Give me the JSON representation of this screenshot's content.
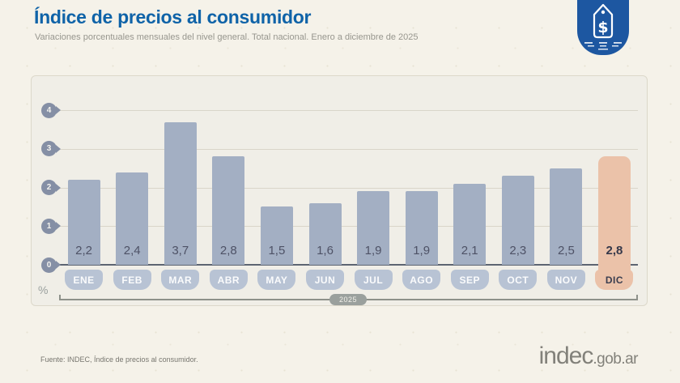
{
  "header": {
    "title": "Índice de precios al consumidor",
    "subtitle": "Variaciones porcentuales mensuales del nivel general. Total nacional. Enero a diciembre de 2025"
  },
  "badge": {
    "icon": "price-tag-dollar-icon",
    "color": "#1d57a1"
  },
  "chart_data": {
    "type": "bar",
    "title": "Índice de precios al consumidor",
    "subtitle": "Variaciones porcentuales mensuales del nivel general. Total nacional. Enero a diciembre de 2025",
    "categories": [
      "ENE",
      "FEB",
      "MAR",
      "ABR",
      "MAY",
      "JUN",
      "JUL",
      "AGO",
      "SEP",
      "OCT",
      "NOV",
      "DIC"
    ],
    "values": [
      2.2,
      2.4,
      3.7,
      2.8,
      1.5,
      1.6,
      1.9,
      1.9,
      2.1,
      2.3,
      2.5,
      2.8
    ],
    "value_labels": [
      "2,2",
      "2,4",
      "3,7",
      "2,8",
      "1,5",
      "1,6",
      "1,9",
      "1,9",
      "2,1",
      "2,3",
      "2,5",
      "2,8"
    ],
    "highlight_index": 11,
    "y_ticks": [
      0,
      1,
      2,
      3,
      4
    ],
    "ylim": [
      0,
      4
    ],
    "unit_label": "%",
    "x_axis_label": "2025",
    "grid": true,
    "legend": false,
    "colors": {
      "bar": "#a3afc3",
      "bar_highlight": "#ebc2a9",
      "month_pill": "#b8c3d4",
      "pill_text": "#f5f5f2",
      "highlight_text": "#3a3d4f",
      "value_text": "#4e5266",
      "axis_pin": "#858fa5",
      "gridline": "#d9d5c9",
      "zero_line": "#5d6471",
      "panel_bg": "#f0eee7",
      "page_bg": "#f5f2e9",
      "title_blue": "#0f63a8"
    }
  },
  "footer": {
    "source": "Fuente: INDEC, Índice de precios al consumidor.",
    "logo_main": "indec",
    "logo_suffix": ".gob.ar"
  }
}
